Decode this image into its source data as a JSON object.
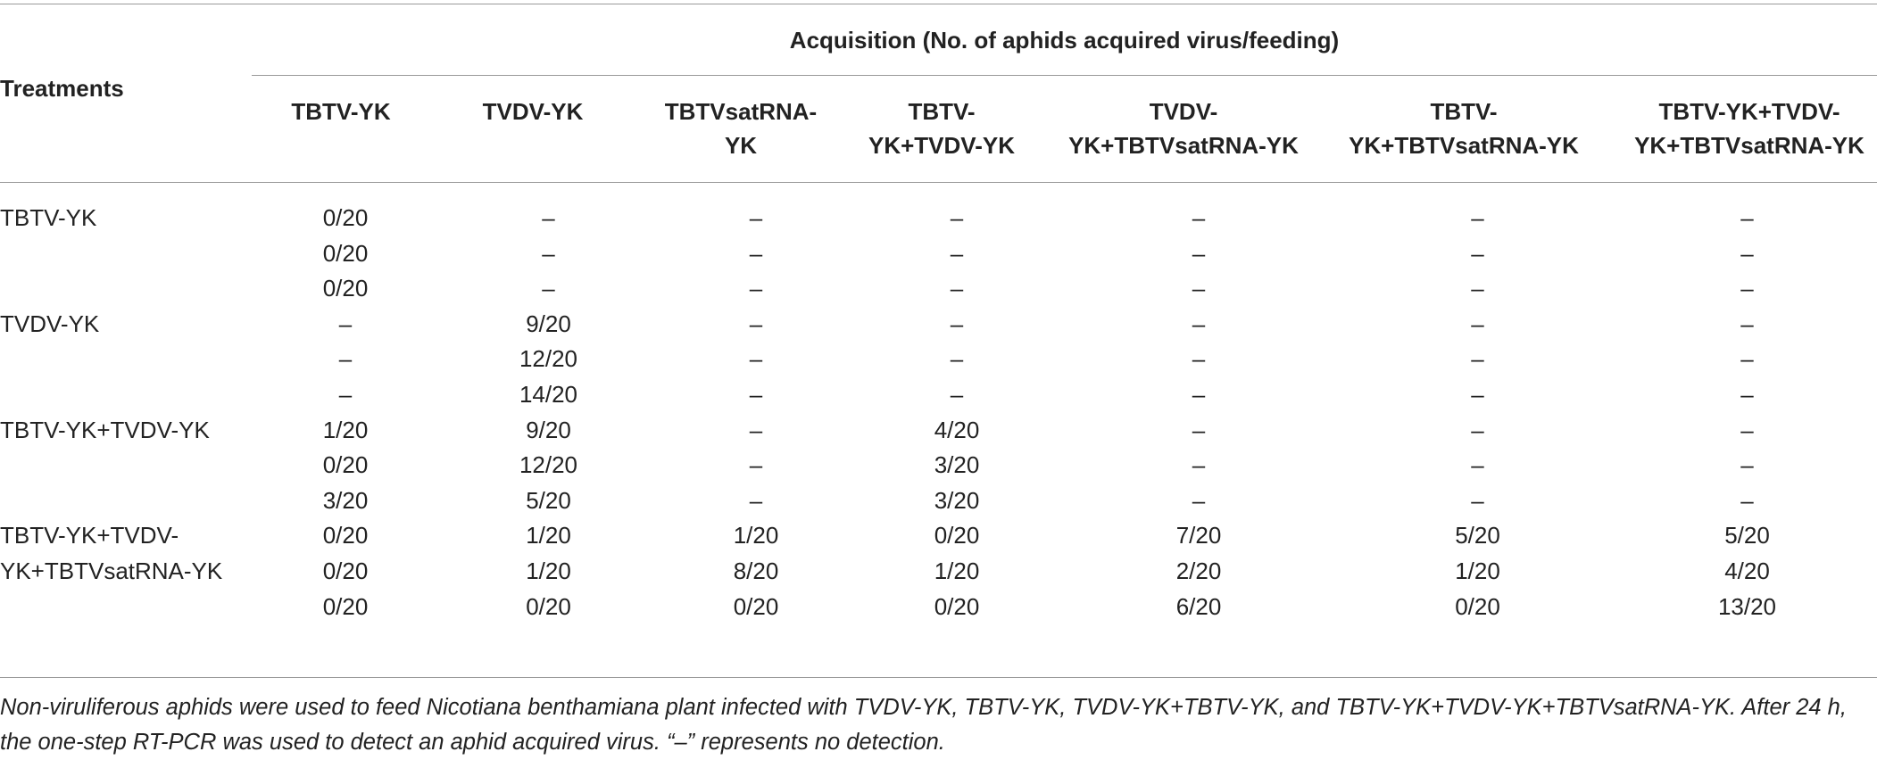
{
  "table": {
    "group_header": "Acquisition (No. of aphids acquired virus/feeding)",
    "treatments_header": "Treatments",
    "columns": [
      {
        "l1": "TBTV-YK",
        "l2": ""
      },
      {
        "l1": "TVDV-YK",
        "l2": ""
      },
      {
        "l1": "TBTVsatRNA-",
        "l2": "YK"
      },
      {
        "l1": "TBTV-",
        "l2": "YK+TVDV-YK"
      },
      {
        "l1": "TVDV-",
        "l2": "YK+TBTVsatRNA-YK"
      },
      {
        "l1": "TBTV-",
        "l2": "YK+TBTVsatRNA-YK"
      },
      {
        "l1": "TBTV-YK+TVDV-",
        "l2": "YK+TBTVsatRNA-YK"
      }
    ],
    "groups": [
      {
        "treatment": "TBTV-YK",
        "rows": [
          [
            "0/20",
            "–",
            "–",
            "–",
            "–",
            "–",
            "–"
          ],
          [
            "0/20",
            "–",
            "–",
            "–",
            "–",
            "–",
            "–"
          ],
          [
            "0/20",
            "–",
            "–",
            "–",
            "–",
            "–",
            "–"
          ]
        ]
      },
      {
        "treatment": "TVDV-YK",
        "rows": [
          [
            "–",
            "9/20",
            "–",
            "–",
            "–",
            "–",
            "–"
          ],
          [
            "–",
            "12/20",
            "–",
            "–",
            "–",
            "–",
            "–"
          ],
          [
            "–",
            "14/20",
            "–",
            "–",
            "–",
            "–",
            "–"
          ]
        ]
      },
      {
        "treatment": "TBTV-YK+TVDV-YK",
        "rows": [
          [
            "1/20",
            "9/20",
            "–",
            "4/20",
            "–",
            "–",
            "–"
          ],
          [
            "0/20",
            "12/20",
            "–",
            "3/20",
            "–",
            "–",
            "–"
          ],
          [
            "3/20",
            "5/20",
            "–",
            "3/20",
            "–",
            "–",
            "–"
          ]
        ]
      },
      {
        "treatment": "TBTV-YK+TVDV-YK+TBTVsatRNA-YK",
        "treatment_l1": "TBTV-YK+TVDV-",
        "treatment_l2": "YK+TBTVsatRNA-YK",
        "rows": [
          [
            "0/20",
            "1/20",
            "1/20",
            "0/20",
            "7/20",
            "5/20",
            "5/20"
          ],
          [
            "0/20",
            "1/20",
            "8/20",
            "1/20",
            "2/20",
            "1/20",
            "4/20"
          ],
          [
            "0/20",
            "0/20",
            "0/20",
            "0/20",
            "6/20",
            "0/20",
            "13/20"
          ]
        ]
      }
    ]
  },
  "footnote": {
    "line1": "Non-viruliferous aphids were used to feed Nicotiana benthamiana plant infected with TVDV-YK, TBTV-YK, TVDV-YK+TBTV-YK, and TBTV-YK+TVDV-YK+TBTVsatRNA-YK. After 24 h,",
    "line2": "the one-step RT-PCR was used to detect an aphid acquired virus. “–” represents no detection."
  }
}
